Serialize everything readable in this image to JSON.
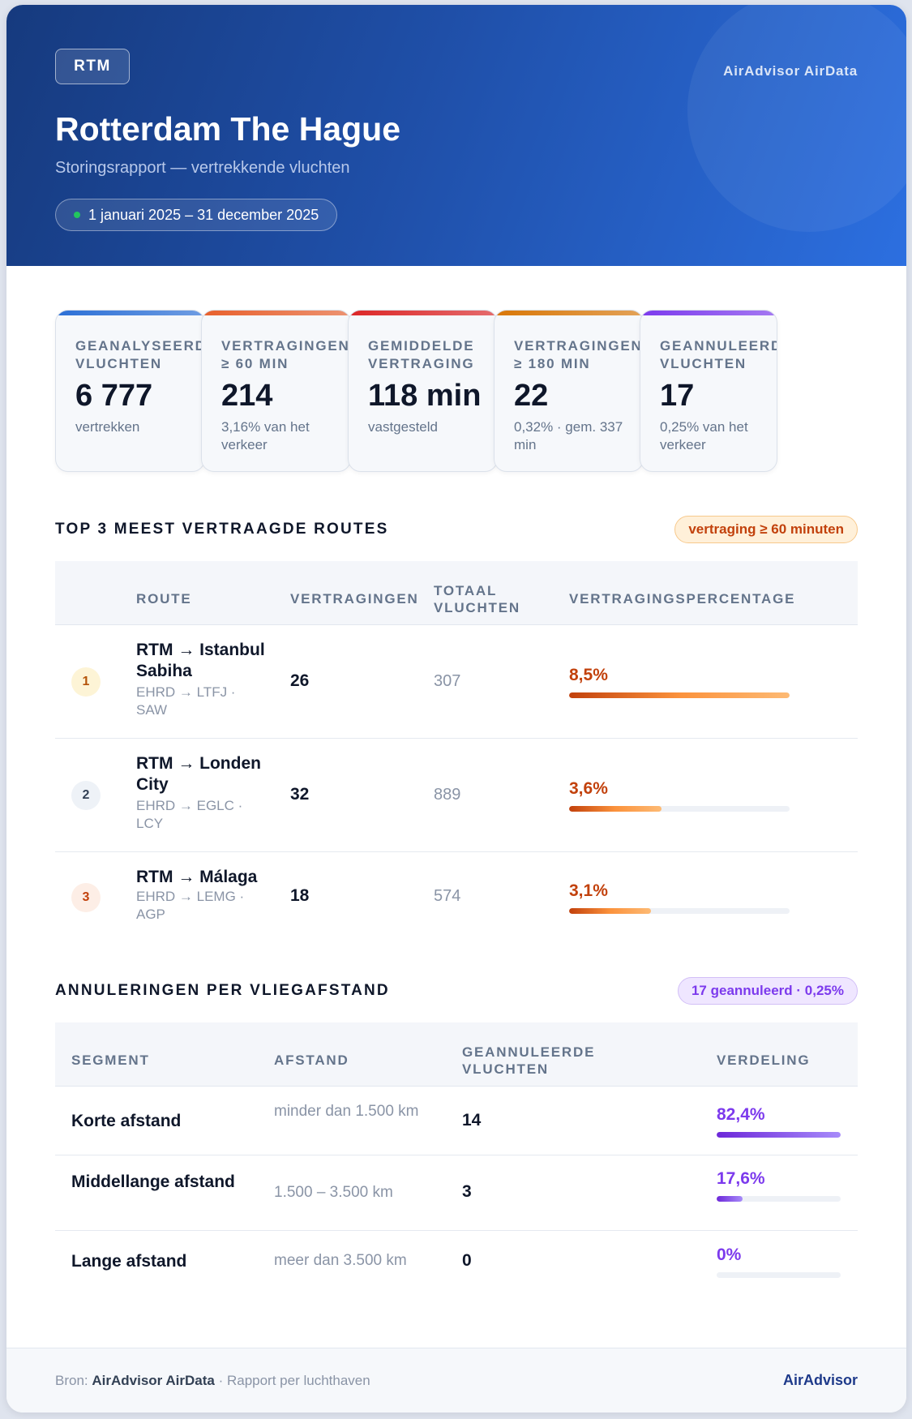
{
  "header": {
    "code": "RTM",
    "brand": "AirAdvisor AirData",
    "title": "Rotterdam The Hague",
    "subtitle": "Storingsrapport — vertrekkende vluchten",
    "period": "1 januari 2025 – 31 december 2025"
  },
  "kpis": [
    {
      "label": "GEANALYSEERD VLUCHTEN",
      "value": "6 777",
      "note": "vertrekken",
      "color": "#2b6fd6"
    },
    {
      "label": "VERTRAGINGEN ≥ 60 MIN",
      "value": "214",
      "note": "3,16% van het verkeer",
      "color": "#e8602c"
    },
    {
      "label": "GEMIDDELDE VERTRAGING",
      "value": "118 min",
      "note": "vastgesteld",
      "color": "#dc2626"
    },
    {
      "label": "VERTRAGINGEN ≥ 180 MIN",
      "value": "22",
      "note": "0,32% · gem. 337 min",
      "color": "#d97706"
    },
    {
      "label": "GEANNULEERDE VLUCHTEN",
      "value": "17",
      "note": "0,25% van het verkeer",
      "color": "#7c3aed"
    }
  ],
  "routes": {
    "title": "TOP 3 MEEST VERTRAAGDE ROUTES",
    "badge": "vertraging ≥ 60 minuten",
    "headers": {
      "route": "ROUTE",
      "delays": "VERTRAGINGEN",
      "total": "TOTAAL VLUCHTEN",
      "pct": "VERTRAGINGSPERCENTAGE"
    },
    "rows": [
      {
        "rank": "1",
        "name": "RTM → Istanbul Sabiha",
        "codes": "EHRD → LTFJ · SAW",
        "delays": "26",
        "total": "307",
        "pct": "8,5%",
        "fraction": 1.0
      },
      {
        "rank": "2",
        "name": "RTM → Londen City",
        "codes": "EHRD → EGLC · LCY",
        "delays": "32",
        "total": "889",
        "pct": "3,6%",
        "fraction": 0.42
      },
      {
        "rank": "3",
        "name": "RTM → Málaga",
        "codes": "EHRD → LEMG · AGP",
        "delays": "18",
        "total": "574",
        "pct": "3,1%",
        "fraction": 0.37
      }
    ]
  },
  "cancellations": {
    "title": "ANNULERINGEN PER VLIEGAFSTAND",
    "badge": "17 geannuleerd · 0,25%",
    "headers": {
      "segment": "SEGMENT",
      "distance": "AFSTAND",
      "cancelled": "GEANNULEERDE VLUCHTEN",
      "share": "VERDELING"
    },
    "rows": [
      {
        "segment": "Korte afstand",
        "distance": "minder dan 1.500 km",
        "cancelled": "14",
        "share": "82,4%",
        "fraction": 1.0
      },
      {
        "segment": "Middellange afstand",
        "distance": "1.500 – 3.500 km",
        "cancelled": "3",
        "share": "17,6%",
        "fraction": 0.21
      },
      {
        "segment": "Lange afstand",
        "distance": "meer dan 3.500 km",
        "cancelled": "0",
        "share": "0%",
        "fraction": 0
      }
    ]
  },
  "footer": {
    "source_prefix": "Bron:",
    "source_name": "AirAdvisor AirData",
    "source_suffix": "· Rapport per luchthaven",
    "brand": "AirAdvisor"
  },
  "colors": {
    "rank1_bg": "#fdf4d6",
    "rank1_fg": "#b45309",
    "rank2_bg": "#eef2f7",
    "rank2_fg": "#334155",
    "rank3_bg": "#fdeee6",
    "rank3_fg": "#c2410c",
    "pct_orange": "#c2410c",
    "pct_purple": "#7c3aed"
  }
}
